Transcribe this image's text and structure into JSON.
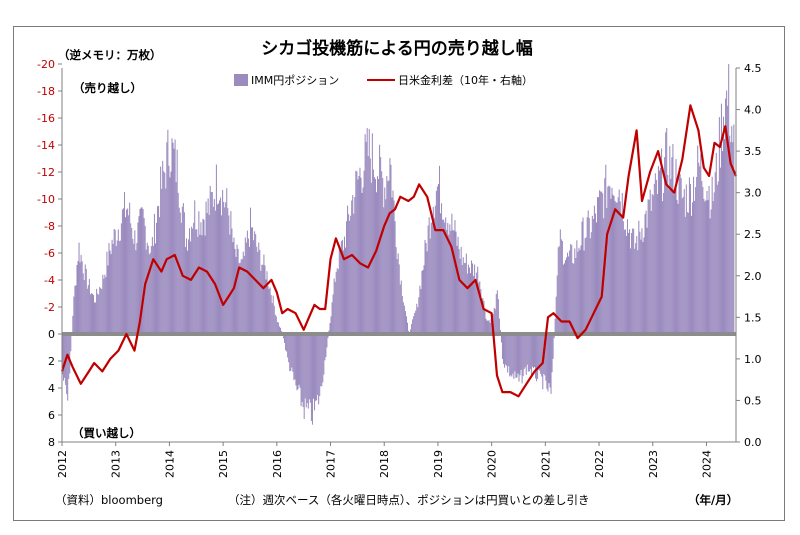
{
  "chart_data": {
    "type": "bar+line",
    "title": "シカゴ投機筋による円の売り越し幅",
    "left_axis": {
      "unit_label": "（逆メモリ：万枚）",
      "range": [
        8,
        -20
      ],
      "inverted": true,
      "ticks": [
        -20,
        -18,
        -16,
        -14,
        -12,
        -10,
        -8,
        -6,
        -4,
        -2,
        0,
        2,
        4,
        6,
        8
      ],
      "tick_labels": [
        "-20",
        "-18",
        "-16",
        "-14",
        "-12",
        "-10",
        "-8",
        "-6",
        "-4",
        "-2",
        "0",
        "2",
        "4",
        "6",
        "8"
      ],
      "top_annotation": "（売り越し）",
      "bottom_annotation": "（買い越し）"
    },
    "right_axis": {
      "range": [
        0.0,
        4.5
      ],
      "ticks": [
        0.0,
        0.5,
        1.0,
        1.5,
        2.0,
        2.5,
        3.0,
        3.5,
        4.0,
        4.5
      ],
      "tick_labels": [
        "0.0",
        "0.5",
        "1.0",
        "1.5",
        "2.0",
        "2.5",
        "3.0",
        "3.5",
        "4.0",
        "4.5"
      ]
    },
    "x_axis": {
      "categories": [
        "2012",
        "2013",
        "2014",
        "2015",
        "2016",
        "2017",
        "2018",
        "2019",
        "2020",
        "2021",
        "2022",
        "2023",
        "2024"
      ],
      "range": [
        2012.0,
        2024.55
      ],
      "unit_label": "（年/月）"
    },
    "grid": false,
    "legend_position": "top-center",
    "series": [
      {
        "name": "IMM円ポジション",
        "type": "bar",
        "axis": "left",
        "color": "#9b8bbf",
        "x": [
          2012.0,
          2012.1,
          2012.2,
          2012.3,
          2012.45,
          2012.6,
          2012.75,
          2012.9,
          2013.05,
          2013.2,
          2013.35,
          2013.5,
          2013.65,
          2013.8,
          2013.9,
          2014.0,
          2014.15,
          2014.3,
          2014.45,
          2014.6,
          2014.75,
          2014.9,
          2015.0,
          2015.1,
          2015.2,
          2015.35,
          2015.5,
          2015.65,
          2015.8,
          2015.92,
          2016.0,
          2016.1,
          2016.2,
          2016.35,
          2016.5,
          2016.65,
          2016.8,
          2016.92,
          2017.0,
          2017.1,
          2017.25,
          2017.4,
          2017.55,
          2017.7,
          2017.85,
          2018.0,
          2018.1,
          2018.2,
          2018.3,
          2018.45,
          2018.6,
          2018.75,
          2018.9,
          2019.0,
          2019.15,
          2019.3,
          2019.45,
          2019.6,
          2019.75,
          2019.9,
          2020.0,
          2020.1,
          2020.2,
          2020.35,
          2020.5,
          2020.65,
          2020.8,
          2020.95,
          2021.1,
          2021.25,
          2021.4,
          2021.55,
          2021.7,
          2021.85,
          2022.0,
          2022.1,
          2022.2,
          2022.35,
          2022.5,
          2022.65,
          2022.8,
          2022.95,
          2023.1,
          2023.25,
          2023.4,
          2023.55,
          2023.7,
          2023.85,
          2024.0,
          2024.1,
          2024.2,
          2024.3,
          2024.4,
          2024.5
        ],
        "values": [
          3.0,
          5.0,
          -2.0,
          -6.5,
          -4.0,
          -2.5,
          -4.0,
          -6.5,
          -8.0,
          -9.5,
          -7.0,
          -8.5,
          -6.0,
          -10.0,
          -12.0,
          -14.0,
          -12.0,
          -7.0,
          -9.0,
          -8.5,
          -9.5,
          -11.5,
          -10.0,
          -9.0,
          -6.0,
          -5.0,
          -8.0,
          -6.0,
          -4.5,
          -2.5,
          -1.0,
          0.0,
          2.0,
          4.0,
          5.5,
          6.0,
          4.5,
          1.0,
          -1.5,
          -5.0,
          -7.0,
          -10.0,
          -12.0,
          -13.5,
          -12.5,
          -11.0,
          -13.0,
          -8.0,
          -4.0,
          0.0,
          -2.0,
          -6.0,
          -10.0,
          -11.0,
          -9.0,
          -7.5,
          -5.5,
          -5.0,
          -4.5,
          -1.0,
          -1.0,
          -3.0,
          2.0,
          3.0,
          3.5,
          2.5,
          3.0,
          3.5,
          4.5,
          -7.0,
          -5.5,
          -6.0,
          -7.5,
          -8.0,
          -9.5,
          -10.5,
          -11.5,
          -11.0,
          -8.5,
          -6.5,
          -8.0,
          -9.5,
          -11.0,
          -13.0,
          -12.0,
          -10.0,
          -10.5,
          -12.5,
          -11.0,
          -10.0,
          -12.5,
          -16.5,
          -17.5,
          -14.0
        ]
      },
      {
        "name": "日米金利差（10年・右軸）",
        "type": "line",
        "axis": "right",
        "color": "#c00000",
        "x": [
          2012.0,
          2012.1,
          2012.2,
          2012.35,
          2012.5,
          2012.6,
          2012.75,
          2012.9,
          2013.05,
          2013.2,
          2013.35,
          2013.45,
          2013.55,
          2013.7,
          2013.85,
          2013.95,
          2014.1,
          2014.25,
          2014.4,
          2014.55,
          2014.7,
          2014.85,
          2015.0,
          2015.1,
          2015.2,
          2015.3,
          2015.45,
          2015.6,
          2015.75,
          2015.9,
          2016.0,
          2016.1,
          2016.2,
          2016.35,
          2016.5,
          2016.6,
          2016.7,
          2016.8,
          2016.9,
          2017.0,
          2017.1,
          2017.25,
          2017.4,
          2017.55,
          2017.7,
          2017.85,
          2018.0,
          2018.1,
          2018.2,
          2018.3,
          2018.45,
          2018.55,
          2018.65,
          2018.8,
          2018.95,
          2019.1,
          2019.25,
          2019.4,
          2019.55,
          2019.7,
          2019.85,
          2020.0,
          2020.1,
          2020.2,
          2020.35,
          2020.5,
          2020.65,
          2020.8,
          2020.95,
          2021.05,
          2021.15,
          2021.3,
          2021.45,
          2021.6,
          2021.75,
          2021.9,
          2022.05,
          2022.15,
          2022.3,
          2022.45,
          2022.55,
          2022.7,
          2022.8,
          2022.95,
          2023.1,
          2023.25,
          2023.4,
          2023.55,
          2023.7,
          2023.85,
          2023.95,
          2024.05,
          2024.15,
          2024.25,
          2024.35,
          2024.45,
          2024.55
        ],
        "values": [
          0.85,
          1.05,
          0.9,
          0.7,
          0.85,
          0.95,
          0.85,
          1.0,
          1.1,
          1.3,
          1.1,
          1.45,
          1.9,
          2.2,
          2.05,
          2.2,
          2.25,
          2.0,
          1.95,
          2.1,
          2.05,
          1.9,
          1.65,
          1.75,
          1.85,
          2.1,
          2.05,
          1.95,
          1.85,
          1.95,
          1.8,
          1.55,
          1.6,
          1.55,
          1.35,
          1.5,
          1.65,
          1.6,
          1.6,
          2.2,
          2.45,
          2.2,
          2.25,
          2.15,
          2.1,
          2.3,
          2.6,
          2.75,
          2.8,
          2.95,
          2.9,
          2.95,
          3.1,
          2.95,
          2.55,
          2.55,
          2.35,
          1.95,
          1.85,
          1.95,
          1.6,
          1.55,
          0.8,
          0.6,
          0.6,
          0.55,
          0.7,
          0.85,
          0.95,
          1.5,
          1.55,
          1.45,
          1.45,
          1.25,
          1.35,
          1.55,
          1.75,
          2.5,
          2.8,
          2.7,
          3.2,
          3.75,
          2.9,
          3.25,
          3.5,
          3.1,
          3.0,
          3.4,
          4.05,
          3.75,
          3.3,
          3.2,
          3.6,
          3.55,
          3.8,
          3.35,
          3.2
        ]
      }
    ],
    "footer_source": "（資料）bloomberg",
    "footer_note": "（注）週次ベース（各火曜日時点）、ポジションは円買いとの差し引き"
  }
}
